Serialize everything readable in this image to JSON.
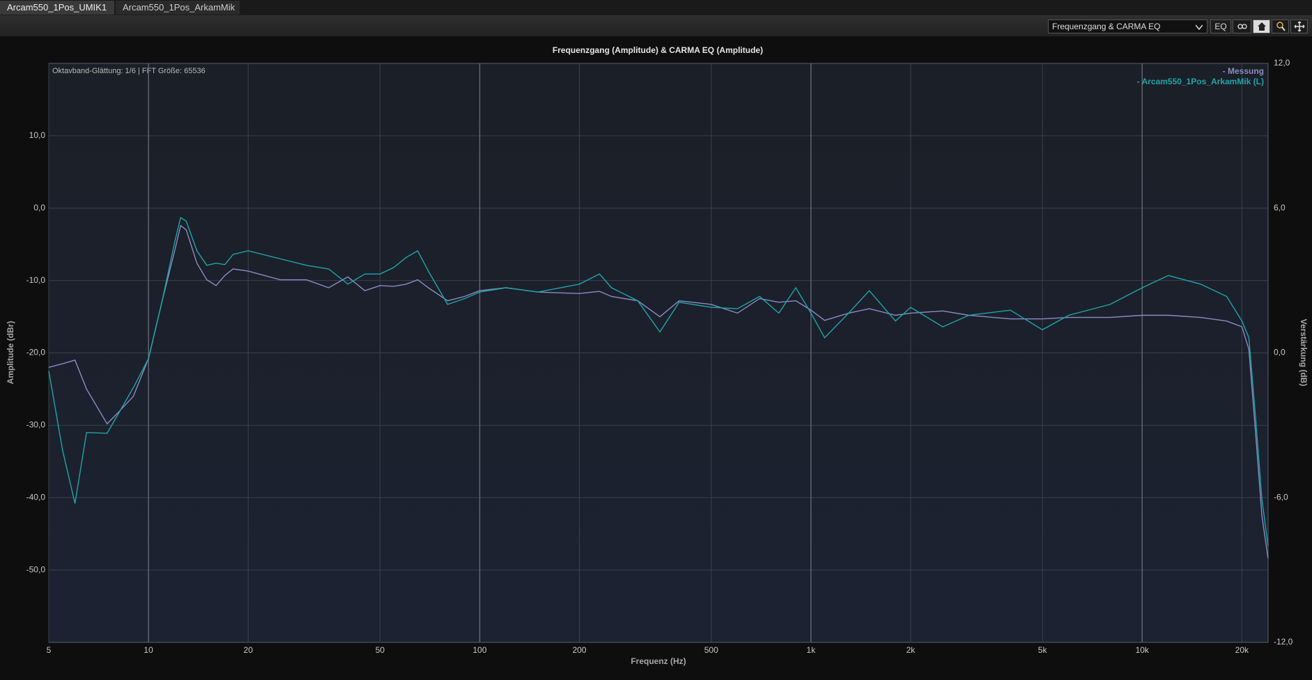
{
  "tabs": [
    "Arcam550_1Pos_UMIK1",
    "Arcam550_1Pos_ArkamMik"
  ],
  "toolbar": {
    "view": "Frequenzgang & CARMA EQ",
    "eq_button": "EQ"
  },
  "chart_data": {
    "type": "line",
    "title": "Frequenzgang (Amplitude) & CARMA EQ (Amplitude)",
    "annotation": "Oktavband-Glättung: 1/6 | FFT Größe: 65536",
    "xlabel": "Frequenz (Hz)",
    "ylabel": "Amplitude (dBr)",
    "y2label": "Verstärkung (dB)",
    "xscale": "log",
    "grid": true,
    "legend": "top-right",
    "xlim": [
      5,
      24000
    ],
    "ylim": [
      -60,
      20
    ],
    "y2lim": [
      -12,
      12
    ],
    "xticks": [
      5,
      10,
      20,
      50,
      100,
      200,
      500,
      {
        "value": 1000,
        "label": "1k"
      },
      {
        "value": 2000,
        "label": "2k"
      },
      {
        "value": 5000,
        "label": "5k"
      },
      {
        "value": 10000,
        "label": "10k"
      },
      {
        "value": 20000,
        "label": "20k"
      }
    ],
    "yticks": [
      {
        "value": 10,
        "label": "10,0"
      },
      {
        "value": 0,
        "label": "0,0"
      },
      {
        "value": -10,
        "label": "-10,0"
      },
      {
        "value": -20,
        "label": "-20,0"
      },
      {
        "value": -30,
        "label": "-30,0"
      },
      {
        "value": -40,
        "label": "-40,0"
      },
      {
        "value": -50,
        "label": "-50,0"
      }
    ],
    "y2ticks": [
      {
        "value": 12,
        "label": "12,0"
      },
      {
        "value": 6,
        "label": "6,0"
      },
      {
        "value": 0,
        "label": "0,0"
      },
      {
        "value": -6,
        "label": "-6,0"
      },
      {
        "value": -12,
        "label": "-12,0"
      }
    ],
    "x": [
      5,
      5.5,
      6,
      6.5,
      7.5,
      8,
      9,
      10,
      11,
      12,
      12.5,
      13,
      14,
      15,
      16,
      17,
      18,
      20,
      25,
      30,
      35,
      40,
      45,
      50,
      55,
      60,
      65,
      70,
      80,
      90,
      100,
      120,
      150,
      200,
      230,
      250,
      300,
      350,
      400,
      500,
      600,
      700,
      800,
      900,
      1000,
      1100,
      1300,
      1500,
      1800,
      2000,
      2500,
      3000,
      4000,
      5000,
      6000,
      8000,
      10000,
      12000,
      15000,
      18000,
      20000,
      21000,
      22000,
      23000,
      24000
    ],
    "series": [
      {
        "name": "- Messung",
        "color": "#8a8cc4",
        "values": [
          -22,
          -21.5,
          -21,
          -25,
          -29.8,
          -28.5,
          -26,
          -20.8,
          -12.8,
          -5.9,
          -2.4,
          -3,
          -7.6,
          -9.9,
          -10.7,
          -9.3,
          -8.4,
          -8.7,
          -9.9,
          -9.9,
          -11,
          -9.5,
          -11.4,
          -10.7,
          -10.8,
          -10.5,
          -9.9,
          -11,
          -12.8,
          -12.2,
          -11.4,
          -11,
          -11.6,
          -11.8,
          -11.5,
          -12.2,
          -12.8,
          -15,
          -12.8,
          -13.3,
          -14.5,
          -12.5,
          -13,
          -12.8,
          -14.1,
          -15.5,
          -14.5,
          -13.9,
          -14.8,
          -14.5,
          -14.2,
          -14.8,
          -15.3,
          -15.3,
          -15.1,
          -15.1,
          -14.8,
          -14.8,
          -15.1,
          -15.6,
          -16.4,
          -19.5,
          -31,
          -42.6,
          -48.4
        ]
      },
      {
        "name": "- Arcam550_1Pos_ArkamMik (L)",
        "color": "#1ea6a8",
        "values": [
          -22.5,
          -33.4,
          -40.8,
          -31,
          -31.1,
          -28.9,
          -24.8,
          -20.8,
          -12.8,
          -4.7,
          -1.3,
          -1.8,
          -5.9,
          -7.9,
          -7.6,
          -7.8,
          -6.4,
          -5.9,
          -7,
          -7.9,
          -8.4,
          -10.5,
          -9.1,
          -9.1,
          -8.2,
          -6.8,
          -5.9,
          -8.7,
          -13.3,
          -12.5,
          -11.6,
          -11,
          -11.6,
          -10.5,
          -9.1,
          -11,
          -12.8,
          -17.1,
          -13,
          -13.7,
          -13.9,
          -12.2,
          -14.5,
          -11,
          -14.5,
          -17.9,
          -14.5,
          -11.4,
          -15.6,
          -13.7,
          -16.4,
          -14.8,
          -14.1,
          -16.8,
          -14.8,
          -13.3,
          -11,
          -9.3,
          -10.5,
          -12.2,
          -15.6,
          -17.9,
          -28.9,
          -40.3,
          -46.7
        ]
      }
    ]
  }
}
